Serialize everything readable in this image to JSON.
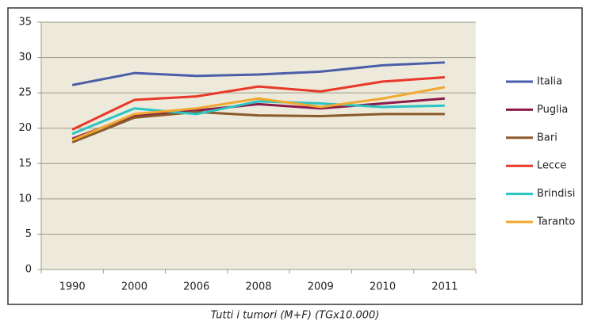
{
  "chart_data": {
    "type": "line",
    "caption": "Tutti i tumori (M+F) (TGx10.000)",
    "categories": [
      "1990",
      "2000",
      "2006",
      "2008",
      "2009",
      "2010",
      "2011"
    ],
    "series": [
      {
        "name": "Italia",
        "color": "#4a5ea8",
        "values": [
          26.1,
          27.8,
          27.4,
          27.6,
          28.0,
          28.9,
          29.3
        ]
      },
      {
        "name": "Puglia",
        "color": "#8b1a4a",
        "values": [
          18.5,
          21.8,
          22.5,
          23.4,
          22.8,
          23.5,
          24.2
        ]
      },
      {
        "name": "Bari",
        "color": "#8b5a2b",
        "values": [
          18.0,
          21.5,
          22.3,
          21.8,
          21.7,
          22.0,
          22.0
        ]
      },
      {
        "name": "Lecce",
        "color": "#e8382a",
        "values": [
          19.8,
          24.0,
          24.5,
          25.9,
          25.2,
          26.6,
          27.2
        ]
      },
      {
        "name": "Brindisi",
        "color": "#2bc4c4",
        "values": [
          19.2,
          22.8,
          22.0,
          23.8,
          23.5,
          23.0,
          23.2
        ]
      },
      {
        "name": "Taranto",
        "color": "#f0a830",
        "values": [
          18.3,
          22.0,
          22.8,
          24.2,
          23.0,
          24.2,
          25.8
        ]
      }
    ],
    "ylim": [
      0,
      35
    ],
    "yticks": [
      0,
      5,
      10,
      15,
      20,
      25,
      30,
      35
    ],
    "grid": true,
    "legend": "right"
  }
}
